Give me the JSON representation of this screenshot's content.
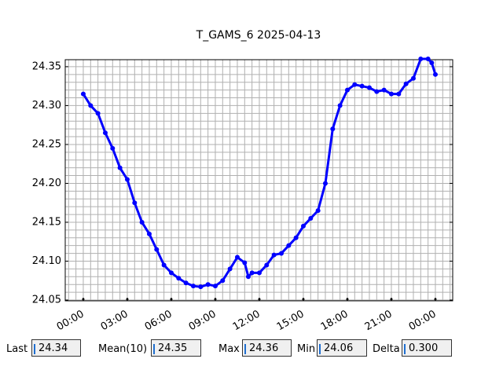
{
  "chart_data": {
    "type": "line",
    "title": "T_GAMS_6 2025-04-13",
    "x": [
      0,
      0.5,
      1,
      1.5,
      2,
      2.5,
      3,
      3.5,
      4,
      4.5,
      5,
      5.5,
      6,
      6.5,
      7,
      7.5,
      8,
      8.5,
      9,
      9.5,
      10,
      10.5,
      11,
      11.25,
      11.5,
      12,
      12.5,
      13,
      13.5,
      14,
      14.5,
      15,
      15.5,
      16,
      16.5,
      17,
      17.5,
      18,
      18.5,
      19,
      19.5,
      20,
      20.5,
      21,
      21.5,
      22,
      22.5,
      23,
      23.5,
      23.75,
      24
    ],
    "series": [
      {
        "name": "T_GAMS_6",
        "color": "#0000ff",
        "values": [
          24.315,
          24.3,
          24.29,
          24.265,
          24.245,
          24.22,
          24.205,
          24.175,
          24.15,
          24.135,
          24.115,
          24.095,
          24.085,
          24.078,
          24.072,
          24.068,
          24.067,
          24.07,
          24.068,
          24.075,
          24.09,
          24.105,
          24.098,
          24.08,
          24.085,
          24.085,
          24.095,
          24.108,
          24.11,
          24.12,
          24.13,
          24.145,
          24.155,
          24.165,
          24.2,
          24.27,
          24.3,
          24.32,
          24.327,
          24.325,
          24.323,
          24.318,
          24.32,
          24.315,
          24.315,
          24.328,
          24.335,
          24.36,
          24.36,
          24.355,
          24.34
        ]
      }
    ],
    "xlim": [
      -1.23,
      25.18
    ],
    "ylim": [
      24.049,
      24.359
    ],
    "xticks": [
      {
        "value": 0,
        "label": "00:00"
      },
      {
        "value": 3,
        "label": "03:00"
      },
      {
        "value": 6,
        "label": "06:00"
      },
      {
        "value": 9,
        "label": "09:00"
      },
      {
        "value": 12,
        "label": "12:00"
      },
      {
        "value": 15,
        "label": "15:00"
      },
      {
        "value": 18,
        "label": "18:00"
      },
      {
        "value": 21,
        "label": "21:00"
      },
      {
        "value": 24,
        "label": "00:00"
      }
    ],
    "yticks": [
      {
        "value": 24.05,
        "label": "24.05"
      },
      {
        "value": 24.1,
        "label": "24.10"
      },
      {
        "value": 24.15,
        "label": "24.15"
      },
      {
        "value": 24.2,
        "label": "24.20"
      },
      {
        "value": 24.25,
        "label": "24.25"
      },
      {
        "value": 24.3,
        "label": "24.30"
      },
      {
        "value": 24.35,
        "label": "24.35"
      }
    ],
    "grid": true,
    "minor_xstep": 0.5,
    "minor_ystep": 0.01
  },
  "stats": [
    {
      "label": "Last",
      "value": "24.34"
    },
    {
      "label": "Mean(10)",
      "value": "24.35"
    },
    {
      "label": "Max",
      "value": "24.36"
    },
    {
      "label": "Min",
      "value": "24.06"
    },
    {
      "label": "Delta",
      "value": "0.300"
    }
  ]
}
